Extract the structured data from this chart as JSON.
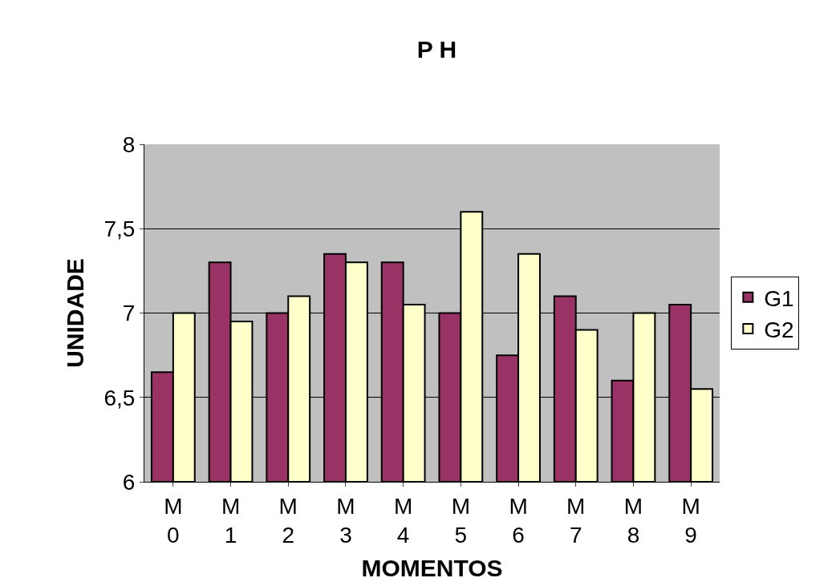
{
  "chart_data": {
    "type": "bar",
    "title": "P H",
    "xlabel": "MOMENTOS",
    "ylabel": "UNIDADE",
    "categories": [
      "M 0",
      "M 1",
      "M 2",
      "M 3",
      "M 4",
      "M 5",
      "M 6",
      "M 7",
      "M 8",
      "M 9"
    ],
    "series": [
      {
        "name": "G1",
        "color": "#993366",
        "values": [
          6.65,
          7.3,
          7.0,
          7.35,
          7.3,
          7.0,
          6.75,
          7.1,
          6.6,
          7.05
        ]
      },
      {
        "name": "G2",
        "color": "#ffffcc",
        "values": [
          7.0,
          6.95,
          7.1,
          7.3,
          7.05,
          7.6,
          7.35,
          6.9,
          7.0,
          6.55
        ]
      }
    ],
    "ylim": [
      6,
      8
    ],
    "yticks": [
      6,
      {
        "value": 6.5,
        "label": "6,5"
      },
      7,
      {
        "value": 7.5,
        "label": "7,5"
      },
      8
    ],
    "grid": "y",
    "legend": "right"
  }
}
